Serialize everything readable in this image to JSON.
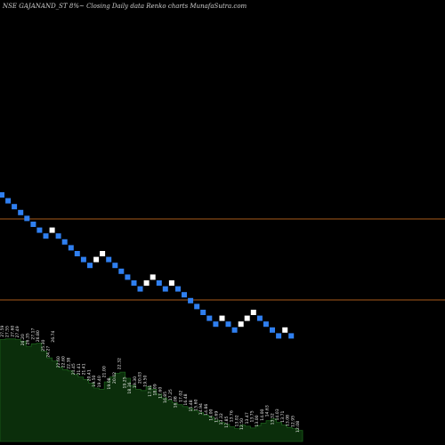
{
  "header": {
    "title": "NSE GAJANAND_ST 8%~ Closing Daily data Renko charts MunafaSutra.com"
  },
  "colors": {
    "background": "#000000",
    "down_brick": "#2f7ff0",
    "up_brick": "#ffffff",
    "reference_line": "#a85a1a",
    "area_fill": "#0b2e0b",
    "area_stroke": "#1b5e1b",
    "label": "#e8e8e8"
  },
  "chart_data": {
    "type": "renko",
    "brick_directions": [
      "down",
      "down",
      "down",
      "down",
      "down",
      "down",
      "down",
      "down",
      "up",
      "down",
      "down",
      "down",
      "down",
      "down",
      "down",
      "up",
      "up",
      "down",
      "down",
      "down",
      "down",
      "down",
      "down",
      "up",
      "up",
      "down",
      "down",
      "up",
      "down",
      "down",
      "down",
      "down",
      "down",
      "down",
      "down",
      "up",
      "down",
      "down",
      "up",
      "up",
      "up",
      "down",
      "down",
      "down",
      "down",
      "up",
      "down"
    ],
    "reference_lines": [
      {
        "name": "upper"
      },
      {
        "name": "lower"
      }
    ],
    "area_labels": [
      "27.59",
      "27.55",
      "27.60",
      "27.49",
      "26.20",
      "26.35",
      "27.17",
      "26.80",
      "25.30",
      "24.27",
      "26.74",
      "22.60",
      "22.60",
      "22.38",
      "21.45",
      "21.41",
      "21.41",
      "20.41",
      "19.50",
      "19.40",
      "21.00",
      "19.08",
      "20.02",
      "22.32",
      "19.25",
      "18.36",
      "19.30",
      "20.03",
      "19.50",
      "17.91",
      "18.09",
      "17.60",
      "16.85",
      "17.25",
      "16.08",
      "17.02",
      "16.48",
      "15.48",
      "15.60",
      "14.94",
      "14.86",
      "14.00",
      "13.69",
      "13.32",
      "12.85",
      "13.76",
      "13.02",
      "12.50",
      "13.47",
      "13.75",
      "13.00",
      "14.00",
      "14.63",
      "13.32",
      "14.03",
      "13.71",
      "13.08",
      "12.95",
      "12.08"
    ],
    "area_profile": [
      27.5,
      27.6,
      27.6,
      27.5,
      27.2,
      26.4,
      26.8,
      26.9,
      25.6,
      24.5,
      24.0,
      23.0,
      22.6,
      22.4,
      21.8,
      21.4,
      21.0,
      20.4,
      19.6,
      19.4,
      20.6,
      21.4,
      22.0,
      22.2,
      21.2,
      20.0,
      19.4,
      19.2,
      19.8,
      19.4,
      18.6,
      18.0,
      17.6,
      17.2,
      16.9,
      16.6,
      16.3,
      15.9,
      15.6,
      15.2,
      14.9,
      14.4,
      14.0,
      13.7,
      13.3,
      13.0,
      13.6,
      13.4,
      13.1,
      13.5,
      13.9,
      14.3,
      14.6,
      14.0,
      13.6,
      13.2,
      13.0,
      12.7,
      12.3
    ]
  }
}
